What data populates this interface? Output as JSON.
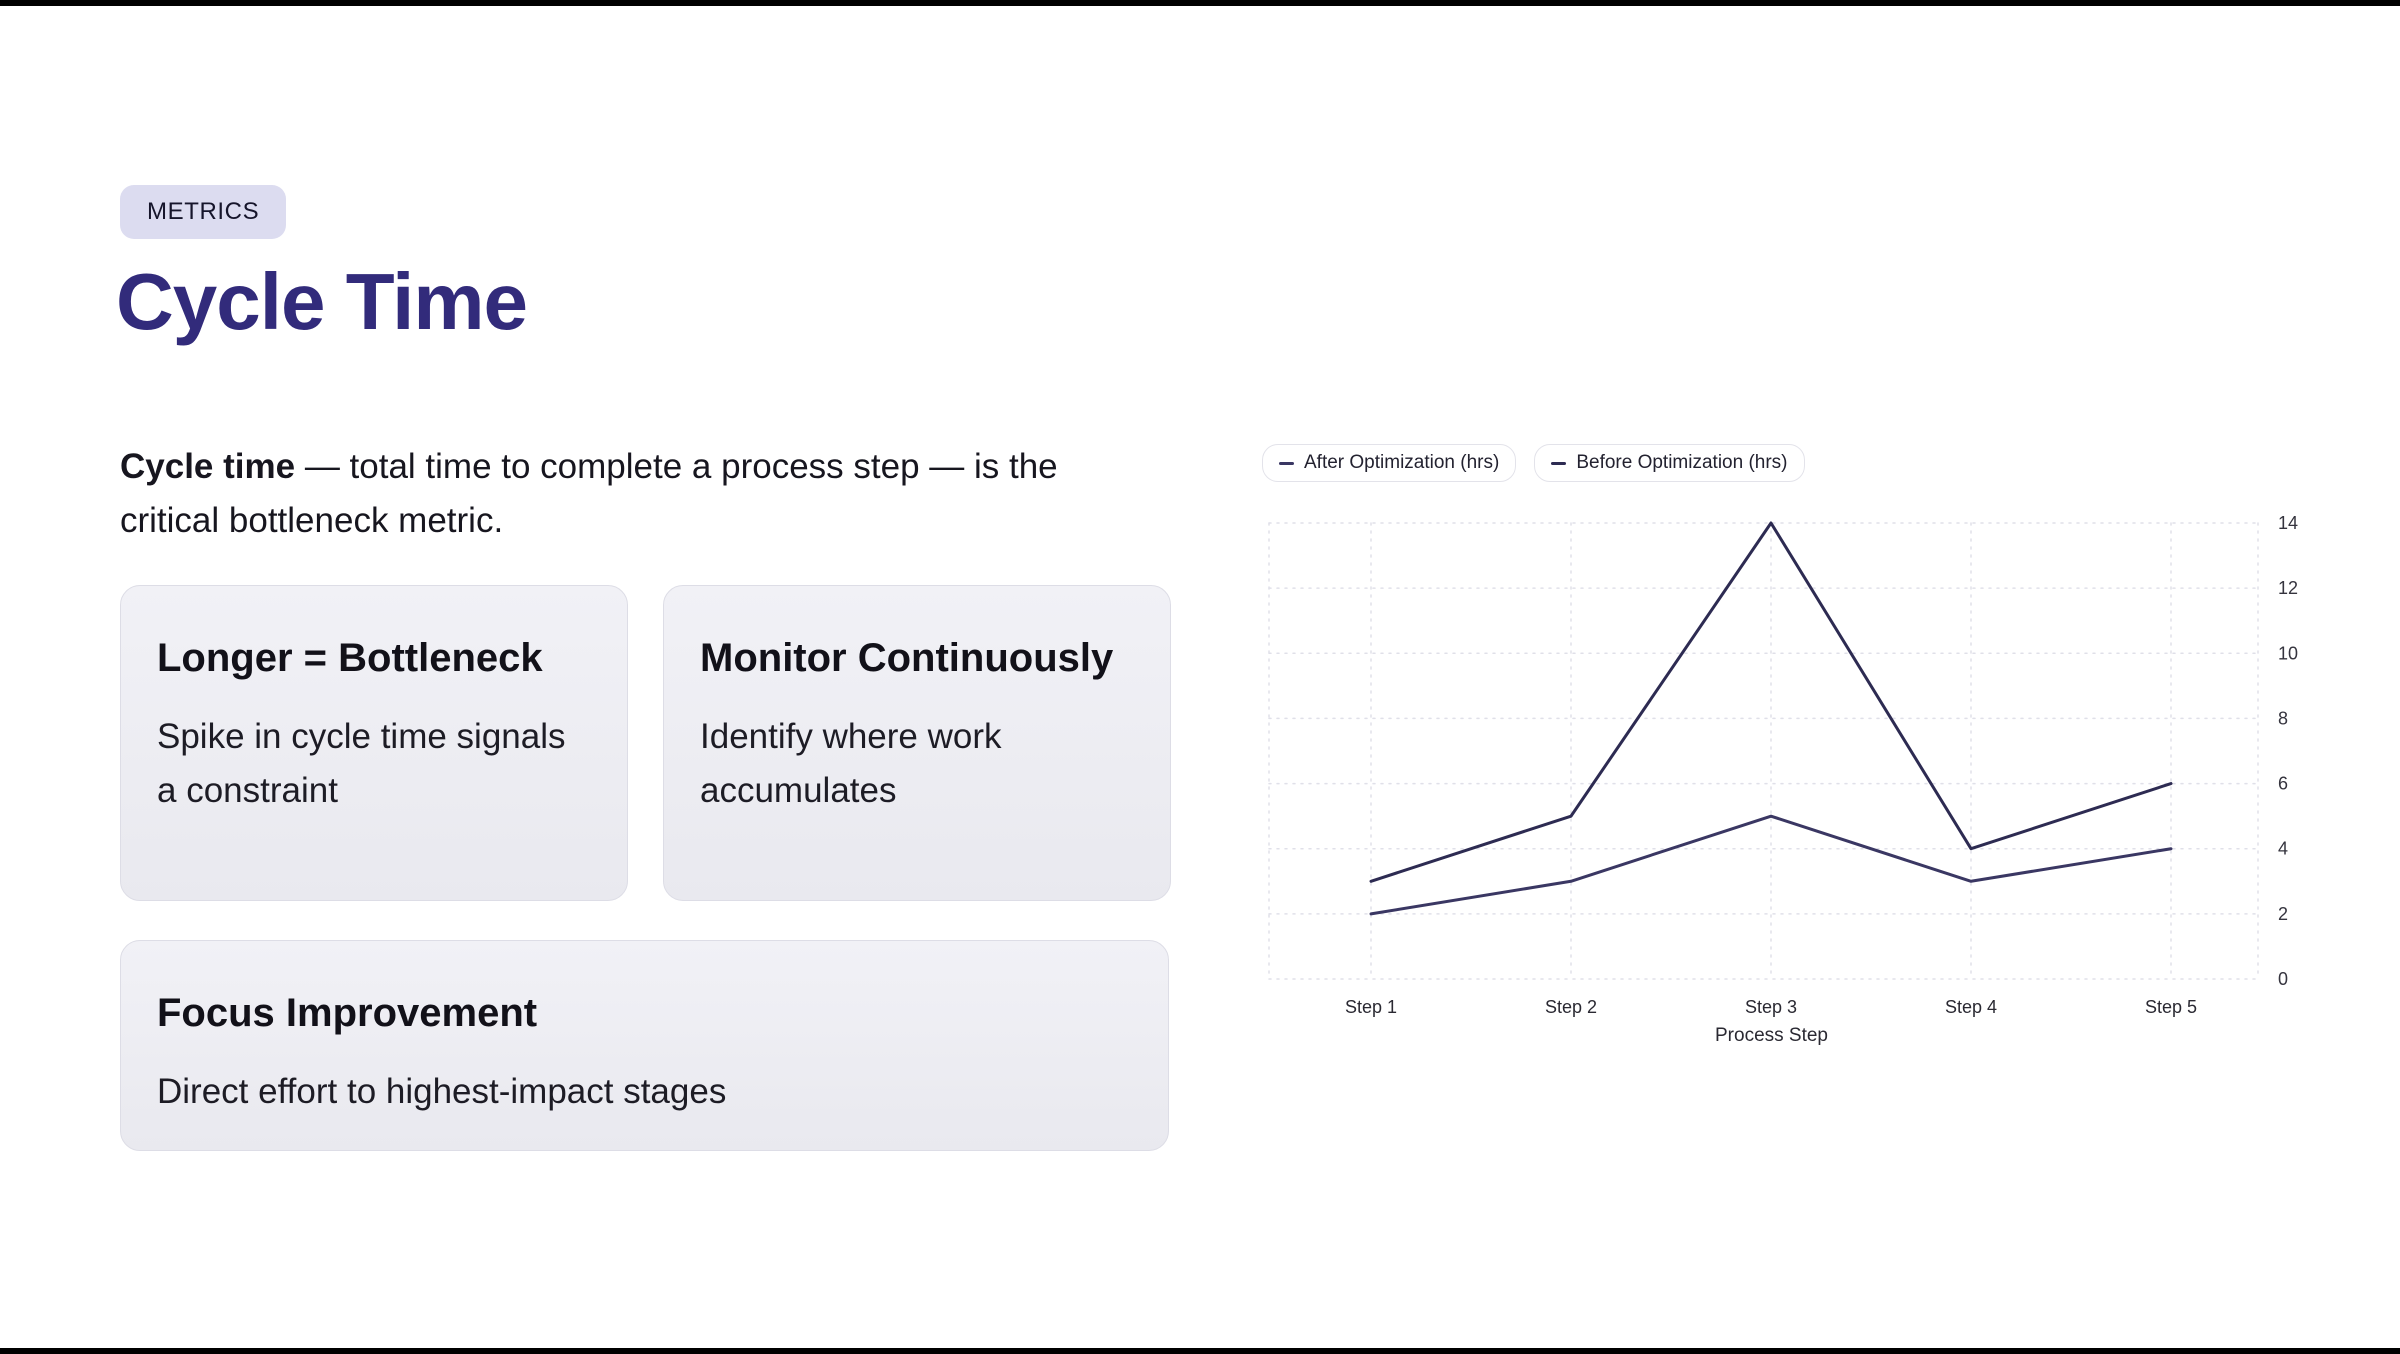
{
  "page": {
    "badge": "METRICS",
    "title": "Cycle Time",
    "intro_bold": "Cycle time",
    "intro_rest": " — total time to complete a process step — is the critical bottleneck metric."
  },
  "cards": [
    {
      "title": "Longer = Bottleneck",
      "body": "Spike in cycle time signals a constraint"
    },
    {
      "title": "Monitor Continuously",
      "body": "Identify where work accumulates"
    },
    {
      "title": "Focus Improvement",
      "body": "Direct effort to highest-impact stages"
    }
  ],
  "chart_data": {
    "type": "line",
    "categories": [
      "Step 1",
      "Step 2",
      "Step 3",
      "Step 4",
      "Step 5"
    ],
    "series": [
      {
        "name": "After Optimization (hrs)",
        "values": [
          2,
          3,
          5,
          3,
          4
        ],
        "color": "#3a3763"
      },
      {
        "name": "Before Optimization (hrs)",
        "values": [
          3,
          5,
          14,
          4,
          6
        ],
        "color": "#2d2b52"
      }
    ],
    "title": "",
    "xlabel": "Process Step",
    "ylabel": "",
    "ylim": [
      0,
      14
    ],
    "yticks": [
      0,
      2,
      4,
      6,
      8,
      10,
      12,
      14
    ],
    "grid": true,
    "legend_position": "top-left",
    "y_axis_side": "right"
  },
  "colors": {
    "accent_title": "#322b7b",
    "badge_bg": "#dcdcf0",
    "card_bg": "#eeeef3",
    "line_after": "#3a3763",
    "line_before": "#2d2b52",
    "grid": "#e0e0e9"
  }
}
